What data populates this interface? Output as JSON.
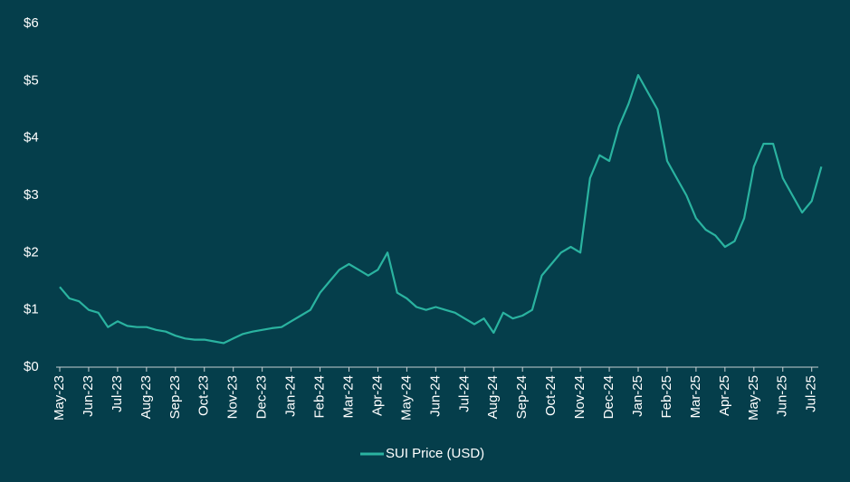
{
  "chart_data": {
    "type": "line",
    "categories": [
      "May-23",
      null,
      null,
      "Jun-23",
      null,
      null,
      "Jul-23",
      null,
      null,
      "Aug-23",
      null,
      null,
      "Sep-23",
      null,
      null,
      "Oct-23",
      null,
      null,
      "Nov-23",
      null,
      null,
      "Dec-23",
      null,
      null,
      "Jan-24",
      null,
      null,
      "Feb-24",
      null,
      null,
      "Mar-24",
      null,
      null,
      "Apr-24",
      null,
      null,
      "May-24",
      null,
      null,
      "Jun-24",
      null,
      null,
      "Jul-24",
      null,
      null,
      "Aug-24",
      null,
      null,
      "Sep-24",
      null,
      null,
      "Oct-24",
      null,
      null,
      "Nov-24",
      null,
      null,
      "Dec-24",
      null,
      null,
      "Jan-25",
      null,
      null,
      "Feb-25",
      null,
      null,
      "Mar-25",
      null,
      null,
      "Apr-25",
      null,
      null,
      "May-25",
      null,
      null,
      "Jun-25",
      null,
      null,
      "Jul-25",
      null
    ],
    "series": [
      {
        "name": "SUI Price (USD)",
        "color": "#2ab3a0",
        "values": [
          1.4,
          1.2,
          1.15,
          1.0,
          0.95,
          0.7,
          0.8,
          0.72,
          0.7,
          0.7,
          0.65,
          0.62,
          0.55,
          0.5,
          0.48,
          0.48,
          0.45,
          0.42,
          0.5,
          0.58,
          0.62,
          0.65,
          0.68,
          0.7,
          0.8,
          0.9,
          1.0,
          1.3,
          1.5,
          1.7,
          1.8,
          1.7,
          1.6,
          1.7,
          2.0,
          1.3,
          1.2,
          1.05,
          1.0,
          1.05,
          1.0,
          0.95,
          0.85,
          0.75,
          0.85,
          0.6,
          0.95,
          0.85,
          0.9,
          1.0,
          1.6,
          1.8,
          2.0,
          2.1,
          2.0,
          3.3,
          3.7,
          3.6,
          4.2,
          4.6,
          5.1,
          4.8,
          4.5,
          3.6,
          3.3,
          3.0,
          2.6,
          2.4,
          2.3,
          2.1,
          2.2,
          2.6,
          3.5,
          3.9,
          3.9,
          3.3,
          3.0,
          2.7,
          2.9,
          3.5
        ]
      }
    ],
    "ylim": [
      0,
      6
    ],
    "yticks": [
      {
        "value": 0,
        "label": "$0"
      },
      {
        "value": 1,
        "label": "$1"
      },
      {
        "value": 2,
        "label": "$2"
      },
      {
        "value": 3,
        "label": "$3"
      },
      {
        "value": 4,
        "label": "$4"
      },
      {
        "value": 5,
        "label": "$5"
      },
      {
        "value": 6,
        "label": "$6"
      }
    ],
    "legend": "bottom"
  }
}
